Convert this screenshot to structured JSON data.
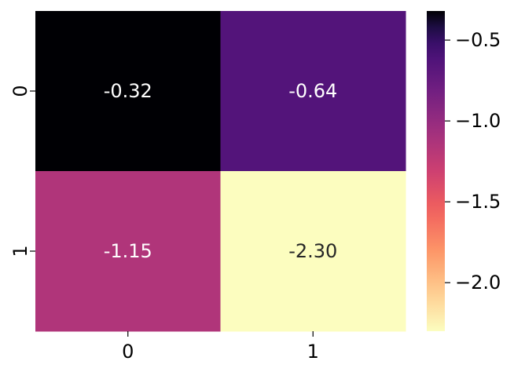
{
  "chart_data": {
    "type": "heatmap",
    "x_categories": [
      "0",
      "1"
    ],
    "y_categories": [
      "0",
      "1"
    ],
    "values": [
      [
        -0.32,
        -0.64
      ],
      [
        -1.15,
        -2.3
      ]
    ],
    "cell_labels": [
      [
        "-0.32",
        "-0.64"
      ],
      [
        "-1.15",
        "-2.30"
      ]
    ],
    "colormap": "magma_r",
    "color_range": [
      -2.3,
      -0.32
    ],
    "colorbar": {
      "ticks": [
        -0.5,
        -1.0,
        -1.5,
        -2.0
      ],
      "tick_labels": [
        "−0.5",
        "−1.0",
        "−1.5",
        "−2.0"
      ],
      "placement": "right"
    },
    "label_colors": {
      "on_dark": "#ffffff",
      "on_light": "#262626"
    },
    "grid": false
  }
}
